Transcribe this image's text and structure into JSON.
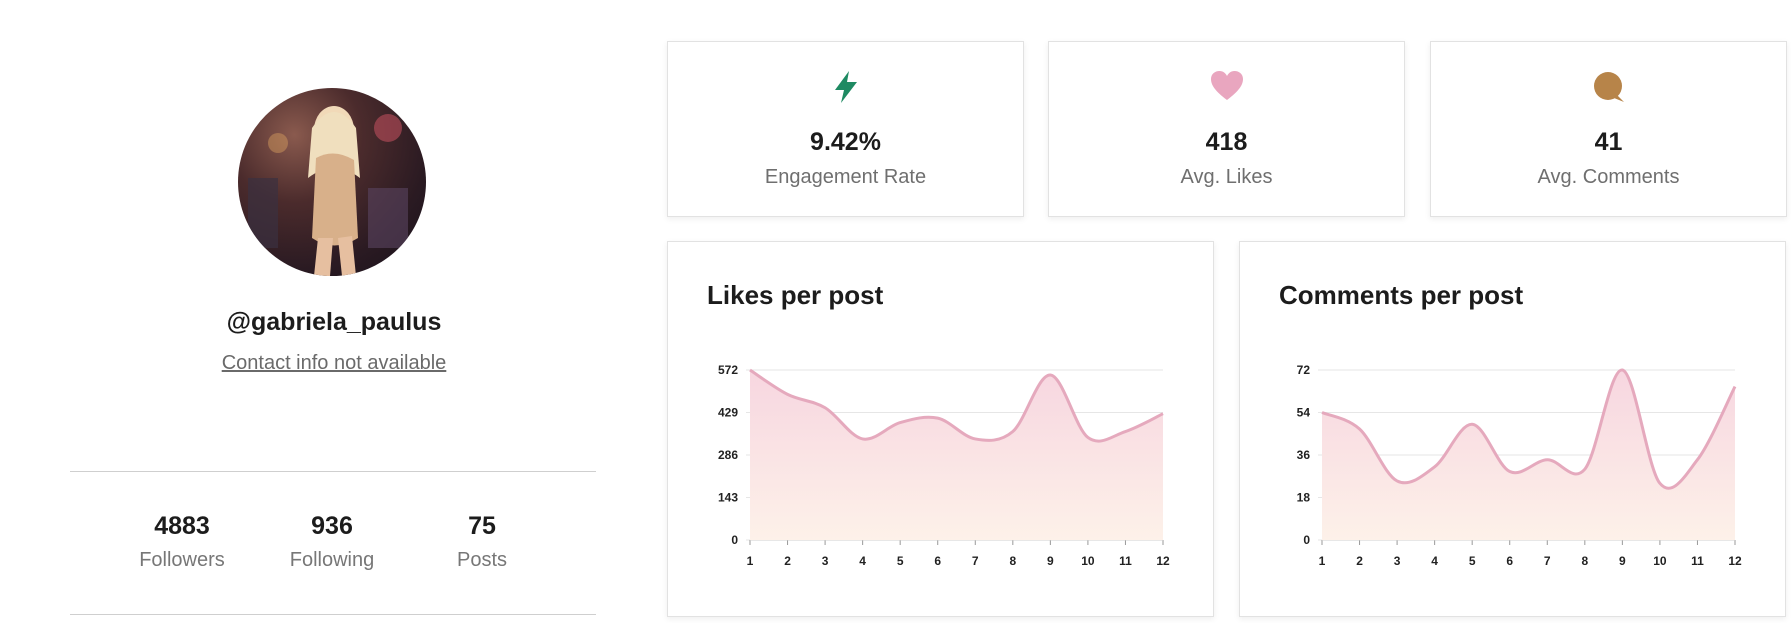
{
  "profile": {
    "username": "@gabriela_paulus",
    "contact": "Contact info not available",
    "stats": [
      {
        "value": "4883",
        "label": "Followers"
      },
      {
        "value": "936",
        "label": "Following"
      },
      {
        "value": "75",
        "label": "Posts"
      }
    ]
  },
  "metrics": [
    {
      "value": "9.42%",
      "label": "Engagement Rate",
      "icon": "lightning-icon",
      "color": "#1e8a62"
    },
    {
      "value": "418",
      "label": "Avg. Likes",
      "icon": "heart-icon",
      "color": "#e9a6bf"
    },
    {
      "value": "41",
      "label": "Avg. Comments",
      "icon": "comment-icon",
      "color": "#b78449"
    }
  ],
  "colors": {
    "line": "#e5a9bd",
    "fill_top": "#f7d6e0",
    "fill_bottom": "#fdf1e9",
    "grid": "#e6e6e6"
  },
  "chart_data": [
    {
      "type": "area",
      "title": "Likes per post",
      "x": [
        1,
        2,
        3,
        4,
        5,
        6,
        7,
        8,
        9,
        10,
        11,
        12
      ],
      "y_ticks": [
        0,
        143,
        286,
        429,
        572
      ],
      "ylim": [
        0,
        572
      ],
      "grid": true,
      "values": [
        572,
        490,
        445,
        340,
        395,
        410,
        340,
        365,
        555,
        345,
        365,
        425
      ]
    },
    {
      "type": "area",
      "title": "Comments per post",
      "x": [
        1,
        2,
        3,
        4,
        5,
        6,
        7,
        8,
        9,
        10,
        11,
        12
      ],
      "y_ticks": [
        0,
        18,
        36,
        54,
        72
      ],
      "ylim": [
        0,
        72
      ],
      "grid": true,
      "values": [
        54,
        47,
        25,
        31,
        49,
        29,
        34,
        30,
        72,
        24,
        34,
        65
      ]
    }
  ]
}
